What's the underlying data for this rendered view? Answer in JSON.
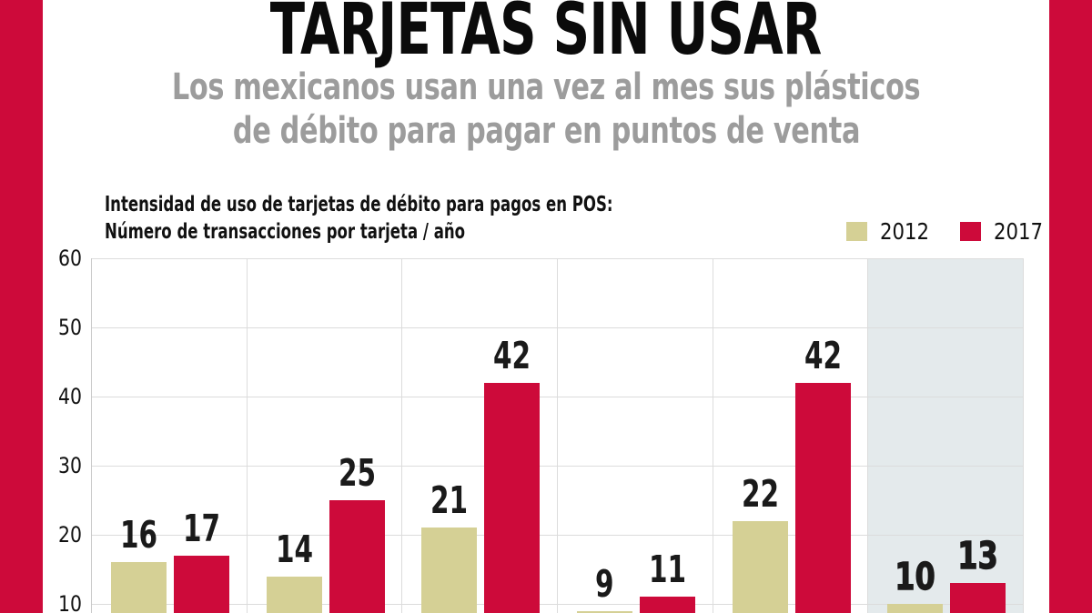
{
  "colors": {
    "accent_red": "#CD0A3A",
    "tan_2012": "#D5D095",
    "highlight_bg": "#E4EAEC",
    "gridline": "#DCDCDC",
    "subtitle_gray": "#9C9C9C",
    "text_black": "#111111"
  },
  "header": {
    "title": "TARJETAS SIN USAR",
    "subtitle": [
      "Los mexicanos usan una vez al mes sus plásticos",
      "de débito para pagar en puntos de venta"
    ]
  },
  "chart": {
    "label_line1": "Intensidad de uso de tarjetas de débito para pagos en POS:",
    "label_line2": "Número de transacciones por tarjeta / año",
    "legend": [
      {
        "label": "2012",
        "color": "#D5D095"
      },
      {
        "label": "2017",
        "color": "#CD0A3A"
      }
    ]
  },
  "chart_data": {
    "type": "bar",
    "title": "Intensidad de uso de tarjetas de débito para pagos en POS: Número de transacciones por tarjeta / año",
    "categories": [
      null,
      null,
      null,
      null,
      null,
      null
    ],
    "series": [
      {
        "name": "2012",
        "color": "#D5D095",
        "values": [
          16,
          14,
          21,
          9,
          22,
          10
        ]
      },
      {
        "name": "2017",
        "color": "#CD0A3A",
        "values": [
          17,
          25,
          42,
          11,
          42,
          13
        ]
      }
    ],
    "ylim": [
      0,
      60
    ],
    "yticks": [
      10,
      20,
      30,
      40,
      50,
      60
    ],
    "grid": true,
    "legend_position": "top-right",
    "value_labels": true,
    "highlighted_group_index": 5,
    "highlight_color": "#E4EAEC",
    "note": "bottom of chart (x-axis category labels) cropped out of view"
  }
}
